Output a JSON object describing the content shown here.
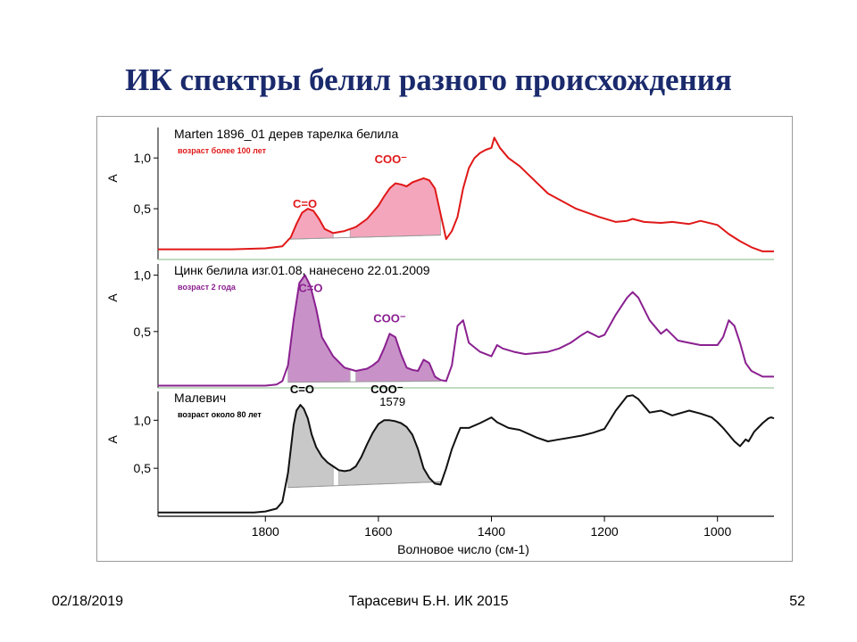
{
  "slide": {
    "title": "ИК спектры белил разного происхождения",
    "footer_date": "02/18/2019",
    "footer_author": "Тарасевич Б.Н.  ИК 2015",
    "footer_page": "52"
  },
  "chart_data": {
    "type": "line",
    "xlabel": "Волновое число (см-1)",
    "xlim": [
      1990,
      900
    ],
    "x_ticks": [
      1800,
      1600,
      1400,
      1200,
      1000
    ],
    "x_reversed": true,
    "grid": false,
    "panels": [
      {
        "ylabel": "A",
        "yticks": [
          "1,0",
          "0,5"
        ],
        "ylim": [
          0.0,
          1.3
        ],
        "title": "Marten 1896_01 дерев тарелка  белила",
        "subtitle": "возраст более 100 лет",
        "color": "#e01818",
        "fill_color": "#f4a6bc",
        "annotations": [
          {
            "text": "C=O",
            "x": 1730,
            "y": 0.51,
            "color": "#e01818"
          },
          {
            "text": "COO⁻",
            "x": 1578,
            "y": 0.95,
            "color": "#e01818"
          }
        ],
        "x": [
          1990,
          1860,
          1800,
          1770,
          1755,
          1745,
          1735,
          1725,
          1715,
          1705,
          1695,
          1680,
          1660,
          1640,
          1620,
          1600,
          1590,
          1580,
          1570,
          1560,
          1550,
          1540,
          1530,
          1520,
          1510,
          1500,
          1490,
          1480,
          1470,
          1460,
          1450,
          1440,
          1430,
          1420,
          1410,
          1400,
          1395,
          1385,
          1370,
          1350,
          1300,
          1250,
          1210,
          1180,
          1160,
          1150,
          1130,
          1100,
          1080,
          1050,
          1030,
          1000,
          980,
          960,
          940,
          920,
          900
        ],
        "y": [
          0.1,
          0.1,
          0.11,
          0.13,
          0.22,
          0.35,
          0.46,
          0.5,
          0.48,
          0.4,
          0.3,
          0.26,
          0.28,
          0.32,
          0.4,
          0.53,
          0.62,
          0.7,
          0.75,
          0.74,
          0.72,
          0.76,
          0.78,
          0.8,
          0.78,
          0.7,
          0.45,
          0.2,
          0.28,
          0.42,
          0.7,
          0.9,
          1.0,
          1.05,
          1.08,
          1.1,
          1.2,
          1.1,
          1.0,
          0.92,
          0.65,
          0.5,
          0.42,
          0.37,
          0.38,
          0.4,
          0.37,
          0.36,
          0.37,
          0.35,
          0.38,
          0.34,
          0.25,
          0.18,
          0.12,
          0.08,
          0.08
        ],
        "baseline": [
          [
            1760,
            0.2
          ],
          [
            1490,
            0.24
          ]
        ],
        "fills": [
          [
            1760,
            1680
          ],
          [
            1650,
            1490
          ]
        ]
      },
      {
        "ylabel": "A",
        "yticks": [
          "1,0",
          "0,5"
        ],
        "ylim": [
          0.0,
          1.1
        ],
        "title": "Цинк белила изг.01.08, нанесено 22.01.2009",
        "subtitle": "возраст 2 года",
        "color": "#8a2090",
        "fill_color": "#c892c8",
        "annotations": [
          {
            "text": "C=O",
            "x": 1720,
            "y": 0.85,
            "color": "#8a2090"
          },
          {
            "text": "COO⁻",
            "x": 1580,
            "y": 0.58,
            "color": "#8a2090"
          }
        ],
        "x": [
          1990,
          1800,
          1780,
          1770,
          1760,
          1750,
          1740,
          1730,
          1720,
          1710,
          1700,
          1680,
          1660,
          1640,
          1620,
          1610,
          1600,
          1590,
          1580,
          1570,
          1560,
          1550,
          1540,
          1530,
          1520,
          1510,
          1500,
          1490,
          1480,
          1470,
          1460,
          1450,
          1440,
          1420,
          1400,
          1390,
          1380,
          1360,
          1340,
          1300,
          1280,
          1260,
          1240,
          1230,
          1210,
          1200,
          1180,
          1160,
          1150,
          1140,
          1120,
          1100,
          1090,
          1070,
          1050,
          1030,
          1000,
          990,
          980,
          970,
          960,
          950,
          940,
          920,
          900
        ],
        "y": [
          0.02,
          0.02,
          0.03,
          0.06,
          0.2,
          0.6,
          0.93,
          1.0,
          0.9,
          0.7,
          0.45,
          0.28,
          0.18,
          0.15,
          0.17,
          0.2,
          0.24,
          0.35,
          0.48,
          0.45,
          0.3,
          0.18,
          0.16,
          0.15,
          0.25,
          0.22,
          0.1,
          0.07,
          0.06,
          0.2,
          0.55,
          0.6,
          0.4,
          0.32,
          0.28,
          0.38,
          0.35,
          0.32,
          0.3,
          0.32,
          0.35,
          0.4,
          0.47,
          0.5,
          0.45,
          0.47,
          0.65,
          0.8,
          0.85,
          0.8,
          0.6,
          0.48,
          0.52,
          0.42,
          0.4,
          0.38,
          0.38,
          0.45,
          0.6,
          0.55,
          0.4,
          0.22,
          0.15,
          0.1,
          0.1
        ],
        "baseline": [
          [
            1760,
            0.05
          ],
          [
            1490,
            0.06
          ]
        ],
        "fills": [
          [
            1760,
            1650
          ],
          [
            1640,
            1490
          ]
        ]
      },
      {
        "ylabel": "A",
        "yticks": [
          "1,0",
          "0,5"
        ],
        "ylim": [
          0.0,
          1.3
        ],
        "title": "Малевич",
        "subtitle": "возраст около 80 лет",
        "color": "#111111",
        "fill_color": "#c8c8c8",
        "annotations": [
          {
            "text": "C=O",
            "x": 1735,
            "y": 1.28,
            "color": "#000000"
          },
          {
            "text": "COO⁻",
            "x": 1585,
            "y": 1.28,
            "color": "#000000"
          },
          {
            "text": "1579",
            "x": 1575,
            "y": 1.15,
            "color": "#000000"
          }
        ],
        "x": [
          1990,
          1820,
          1800,
          1780,
          1770,
          1760,
          1750,
          1745,
          1738,
          1732,
          1725,
          1718,
          1710,
          1700,
          1690,
          1680,
          1670,
          1660,
          1650,
          1640,
          1630,
          1620,
          1610,
          1600,
          1590,
          1580,
          1570,
          1560,
          1550,
          1540,
          1530,
          1520,
          1510,
          1500,
          1490,
          1480,
          1470,
          1460,
          1455,
          1440,
          1420,
          1400,
          1390,
          1370,
          1350,
          1320,
          1300,
          1280,
          1260,
          1240,
          1220,
          1200,
          1180,
          1160,
          1150,
          1140,
          1120,
          1100,
          1080,
          1050,
          1030,
          1010,
          1000,
          990,
          980,
          970,
          960,
          950,
          945,
          935,
          920,
          910,
          905,
          900
        ],
        "y": [
          0.04,
          0.04,
          0.05,
          0.08,
          0.15,
          0.45,
          0.95,
          1.1,
          1.16,
          1.12,
          1.02,
          0.85,
          0.72,
          0.62,
          0.56,
          0.52,
          0.48,
          0.47,
          0.48,
          0.52,
          0.62,
          0.75,
          0.87,
          0.96,
          1.0,
          1.0,
          0.99,
          0.97,
          0.93,
          0.85,
          0.7,
          0.5,
          0.4,
          0.34,
          0.33,
          0.5,
          0.7,
          0.85,
          0.92,
          0.92,
          0.97,
          1.03,
          0.98,
          0.92,
          0.9,
          0.82,
          0.78,
          0.8,
          0.82,
          0.84,
          0.87,
          0.91,
          1.1,
          1.25,
          1.26,
          1.22,
          1.08,
          1.1,
          1.05,
          1.1,
          1.07,
          1.03,
          0.98,
          0.92,
          0.85,
          0.78,
          0.73,
          0.8,
          0.78,
          0.88,
          0.97,
          1.02,
          1.03,
          1.02
        ],
        "baseline": [
          [
            1760,
            0.3
          ],
          [
            1490,
            0.36
          ]
        ],
        "fills": [
          [
            1760,
            1680
          ],
          [
            1670,
            1490
          ]
        ]
      }
    ]
  }
}
